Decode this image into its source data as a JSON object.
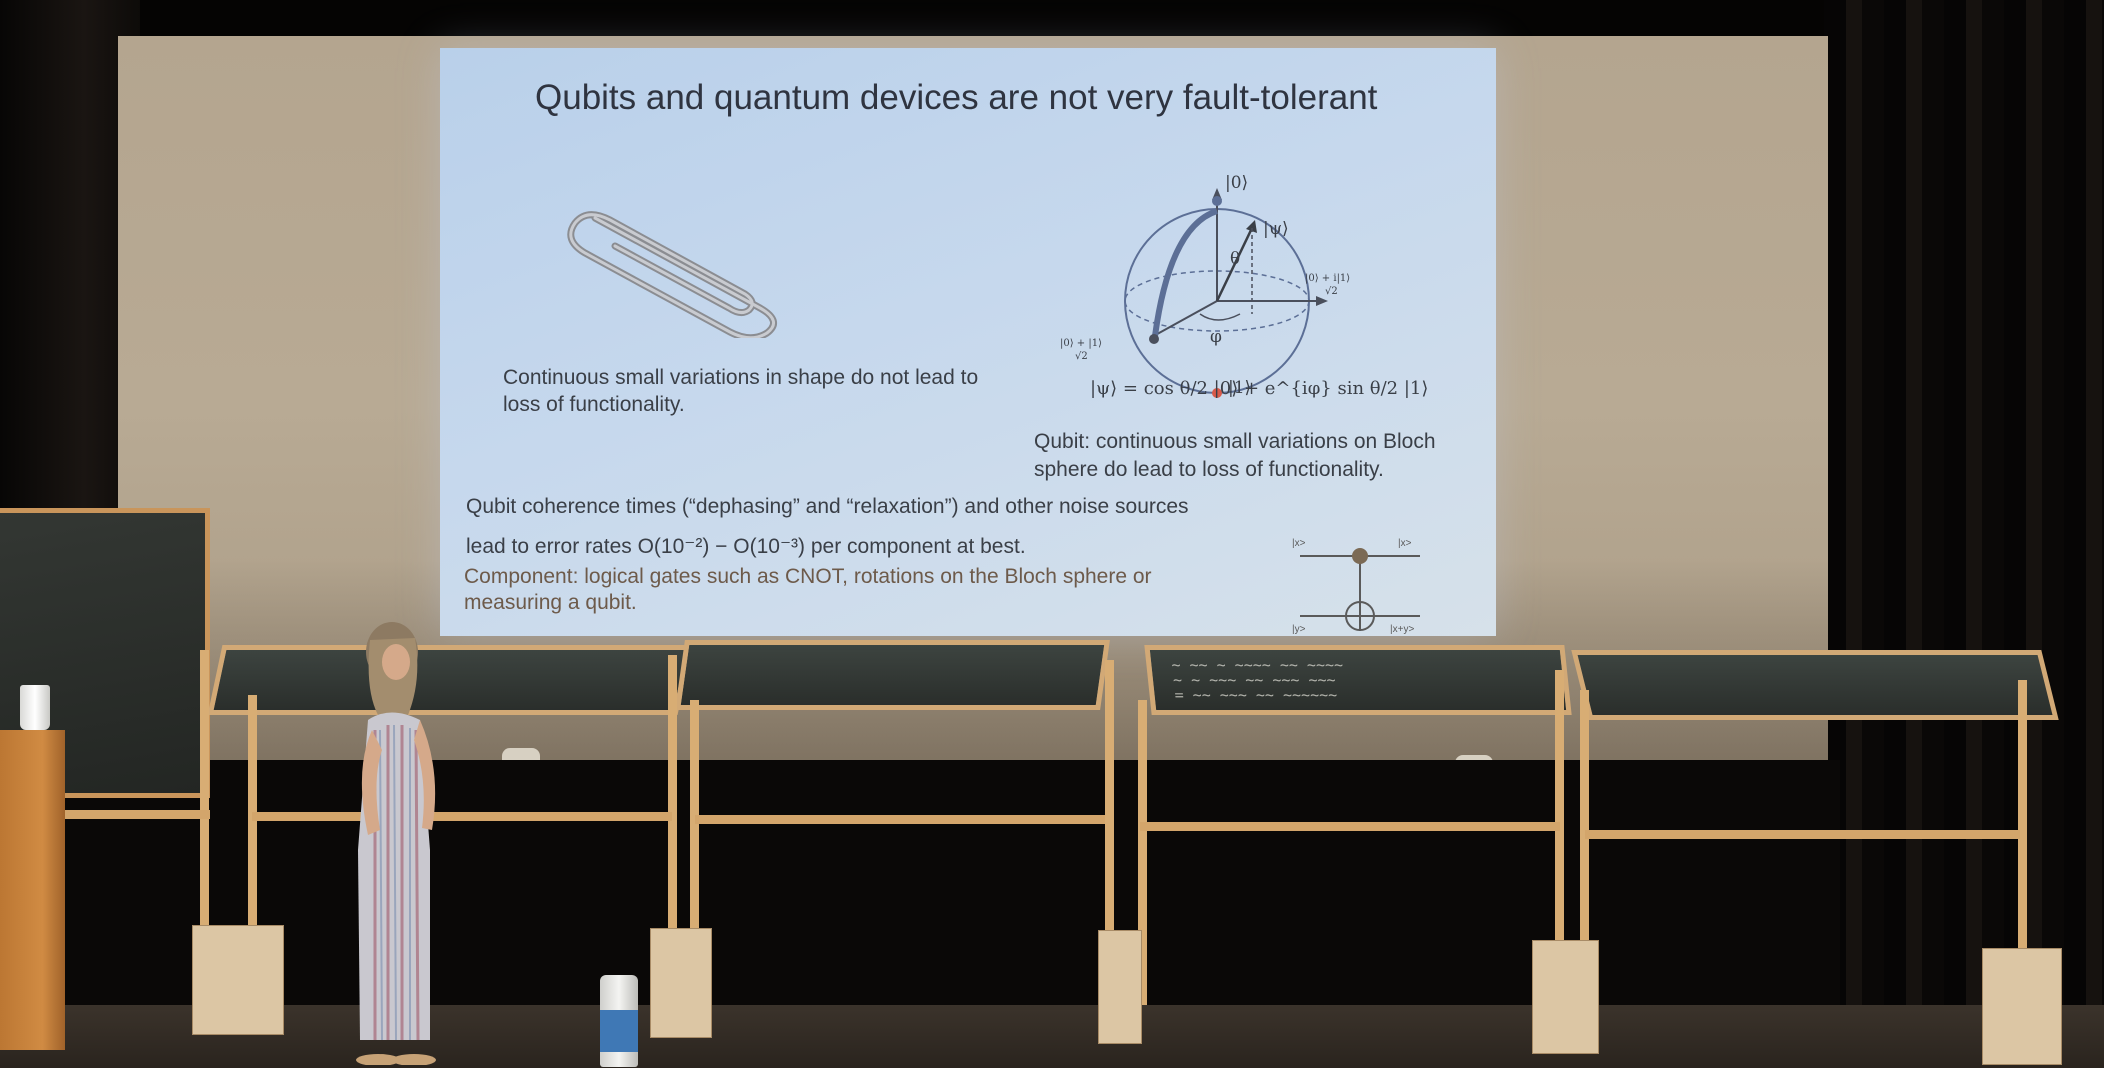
{
  "slide": {
    "title": "Qubits and quantum devices are not very fault-tolerant",
    "paperclip_caption_line1": "Continuous small variations in shape do not lead to",
    "paperclip_caption_line2": "loss of functionality.",
    "bloch_caption_line1": "Qubit: continuous small variations on Bloch",
    "bloch_caption_line2": "sphere do lead to loss of functionality.",
    "equation": "|ψ⟩ = cos θ/2 |0⟩ + e^{iφ} sin θ/2 |1⟩",
    "noise_line1": "Qubit coherence times (“dephasing” and “relaxation”) and other noise sources",
    "noise_line2": "lead to error rates O(10⁻²) − O(10⁻³) per component at best.",
    "component_line1": "Component: logical gates such as CNOT, rotations on the Bloch sphere or",
    "component_line2": "measuring a qubit.",
    "bloch_labels": {
      "top": "|0⟩",
      "bottom": "|1⟩",
      "psi": "|ψ⟩",
      "theta": "θ",
      "phi": "φ",
      "right": "|0⟩ + i|1⟩",
      "left": "|0⟩ + |1⟩",
      "sqrt2": "√2"
    },
    "circuit_labels": {
      "top_in": "|x>",
      "top_out": "|x>",
      "bottom_in": "|y>",
      "bottom_out": "|x+y>"
    }
  },
  "colors": {
    "slide_bg": "#c6d8ed",
    "bloch_path": "#5c6f96",
    "point_red": "#d85a4a",
    "wood": "#d3a56b",
    "chalkboard": "#2b2f2c"
  }
}
